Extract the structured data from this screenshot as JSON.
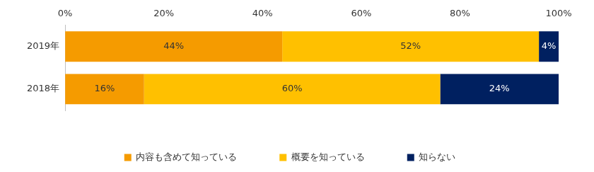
{
  "chart_data": {
    "type": "bar",
    "orientation": "horizontal",
    "stacked": true,
    "categories": [
      "2019年",
      "2018年"
    ],
    "series": [
      {
        "name": "内容も含めて知っている",
        "color": "#f59b00",
        "values": [
          44,
          16
        ],
        "value_labels": [
          "44%",
          "16%"
        ]
      },
      {
        "name": "概要を知っている",
        "color": "#ffc000",
        "values": [
          52,
          60
        ],
        "value_labels": [
          "52%",
          "60%"
        ]
      },
      {
        "name": "知らない",
        "color": "#002060",
        "values": [
          4,
          24
        ],
        "value_labels": [
          "4%",
          "24%"
        ]
      }
    ],
    "xlim": [
      0,
      100
    ],
    "xticks": [
      {
        "value": 0,
        "label": "0%"
      },
      {
        "value": 20,
        "label": "20%"
      },
      {
        "value": 40,
        "label": "40%"
      },
      {
        "value": 60,
        "label": "60%"
      },
      {
        "value": 80,
        "label": "80%"
      },
      {
        "value": 100,
        "label": "100%"
      }
    ],
    "grid": false,
    "legend": "bottom",
    "data_labels": true
  }
}
